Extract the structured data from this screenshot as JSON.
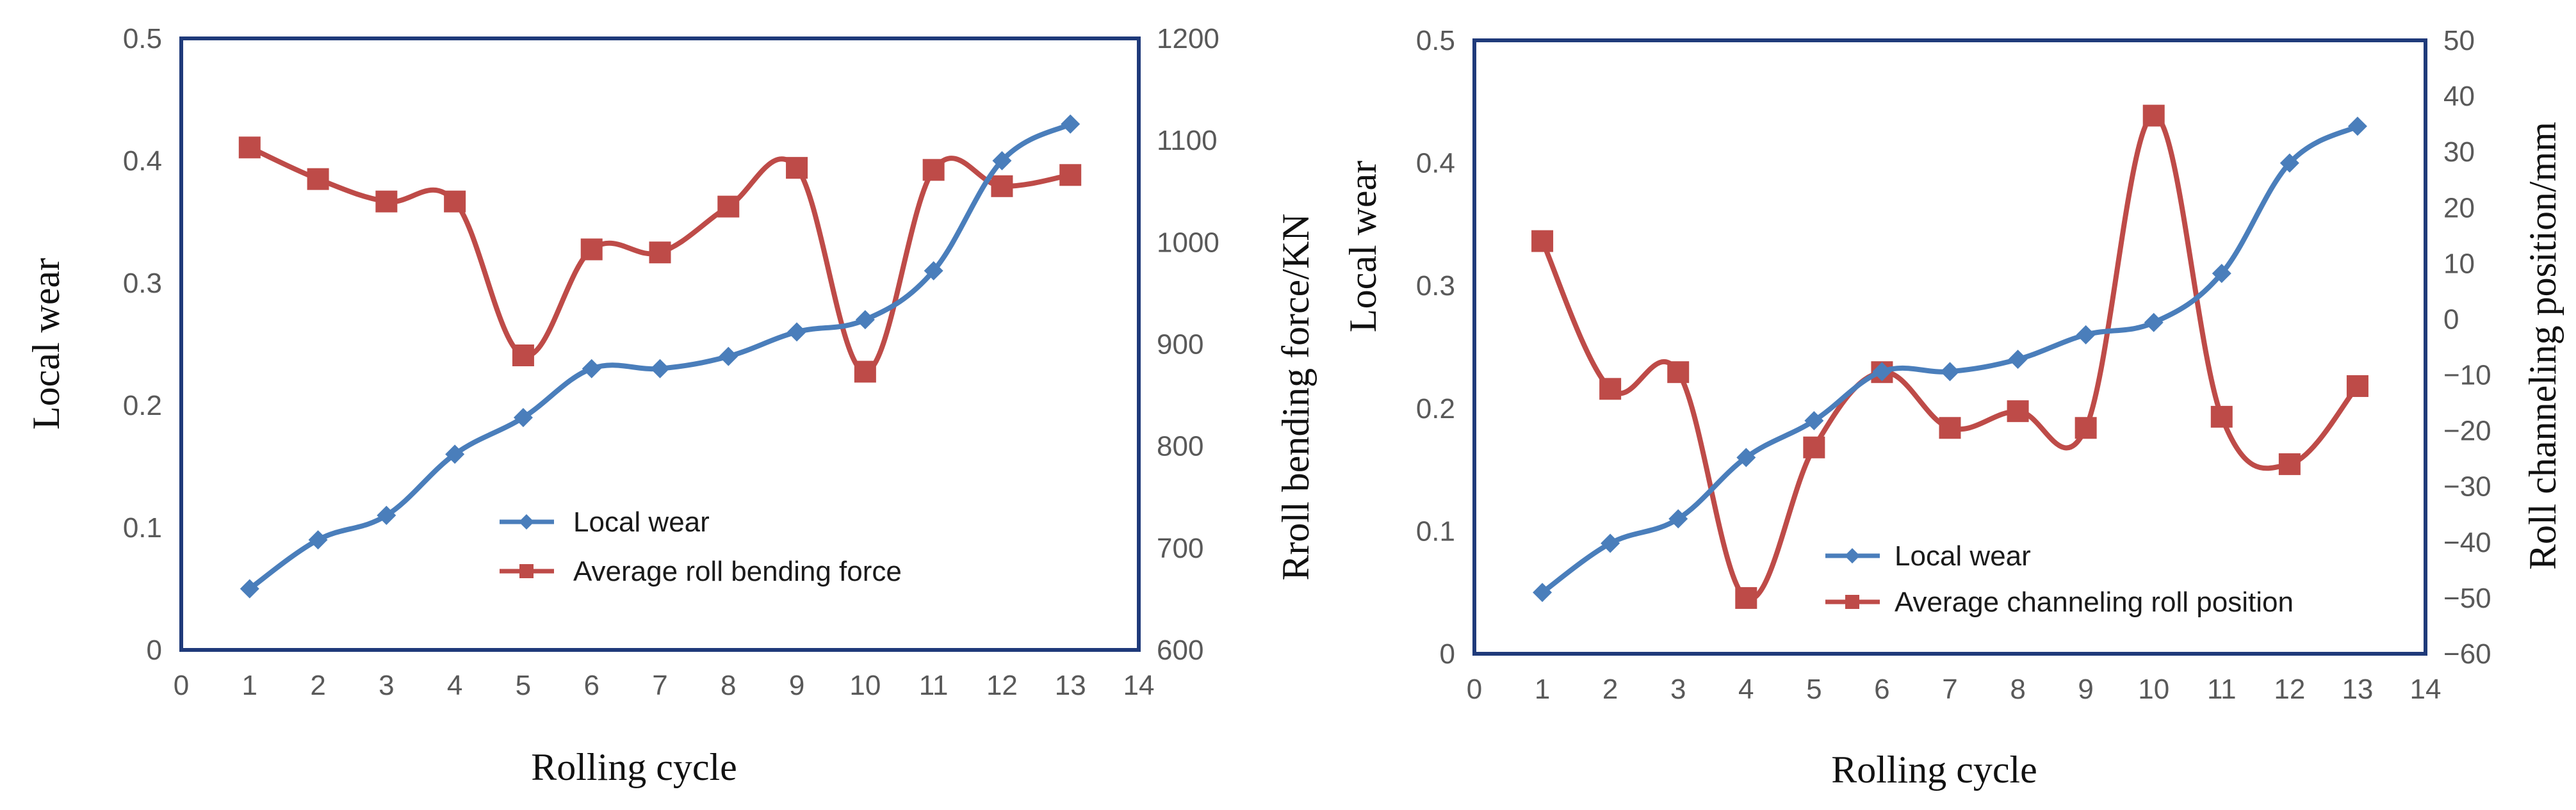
{
  "chart_data": [
    {
      "type": "line",
      "title": "",
      "xlabel": "Rolling cycle",
      "ylabel": "Local wear",
      "y2label": "Rroll bending force/KN",
      "xlim": [
        0,
        14
      ],
      "ylim": [
        0,
        0.5
      ],
      "y2lim": [
        600,
        1200
      ],
      "x_ticks": [
        "0",
        "1",
        "2",
        "3",
        "4",
        "5",
        "6",
        "7",
        "8",
        "9",
        "10",
        "11",
        "12",
        "13",
        "14"
      ],
      "y_ticks": [
        "0",
        "0.1",
        "0.2",
        "0.3",
        "0.4",
        "0.5"
      ],
      "y2_ticks": [
        "600",
        "700",
        "800",
        "900",
        "1000",
        "1100",
        "1200"
      ],
      "grid": false,
      "legend_position": "center-right",
      "series": [
        {
          "name": "Local wear",
          "axis": "left",
          "color": "#4a7ebb",
          "marker": "diamond",
          "x": [
            1,
            2,
            3,
            4,
            5,
            6,
            7,
            8,
            9,
            10,
            11,
            12,
            13
          ],
          "values": [
            0.05,
            0.09,
            0.11,
            0.16,
            0.19,
            0.23,
            0.23,
            0.24,
            0.26,
            0.27,
            0.31,
            0.4,
            0.43
          ]
        },
        {
          "name": "Average roll bending force",
          "axis": "right",
          "color": "#be4b48",
          "marker": "square",
          "x": [
            1,
            2,
            3,
            4,
            5,
            6,
            7,
            8,
            9,
            10,
            11,
            12,
            13
          ],
          "values": [
            1093,
            1062,
            1040,
            1040,
            889,
            993,
            990,
            1035,
            1073,
            873,
            1071,
            1055,
            1066
          ]
        }
      ]
    },
    {
      "type": "line",
      "title": "",
      "xlabel": "Rolling cycle",
      "ylabel": "Local wear",
      "y2label": "Roll channeling position/mm",
      "xlim": [
        0,
        14
      ],
      "ylim": [
        0,
        0.5
      ],
      "y2lim": [
        -60,
        50
      ],
      "x_ticks": [
        "0",
        "1",
        "2",
        "3",
        "4",
        "5",
        "6",
        "7",
        "8",
        "9",
        "10",
        "11",
        "12",
        "13",
        "14"
      ],
      "y_ticks": [
        "0",
        "0.1",
        "0.2",
        "0.3",
        "0.4",
        "0.5"
      ],
      "y2_ticks": [
        "−60",
        "−50",
        "−40",
        "−30",
        "−20",
        "−10",
        "0",
        "10",
        "20",
        "30",
        "40",
        "50"
      ],
      "grid": false,
      "legend_position": "center-right",
      "series": [
        {
          "name": "Local wear",
          "axis": "left",
          "color": "#4a7ebb",
          "marker": "diamond",
          "x": [
            1,
            2,
            3,
            4,
            5,
            6,
            7,
            8,
            9,
            10,
            11,
            12,
            13
          ],
          "values": [
            0.05,
            0.09,
            0.11,
            0.16,
            0.19,
            0.23,
            0.23,
            0.24,
            0.26,
            0.27,
            0.31,
            0.4,
            0.43
          ]
        },
        {
          "name": "Average channeling roll position",
          "axis": "right",
          "color": "#be4b48",
          "marker": "square",
          "x": [
            1,
            2,
            3,
            4,
            5,
            6,
            7,
            8,
            9,
            10,
            11,
            12,
            13
          ],
          "values": [
            14,
            -12.5,
            -9.5,
            -50,
            -23,
            -9.5,
            -19.5,
            -16.5,
            -19.5,
            36.5,
            -17.5,
            -26,
            -12
          ]
        }
      ]
    }
  ]
}
